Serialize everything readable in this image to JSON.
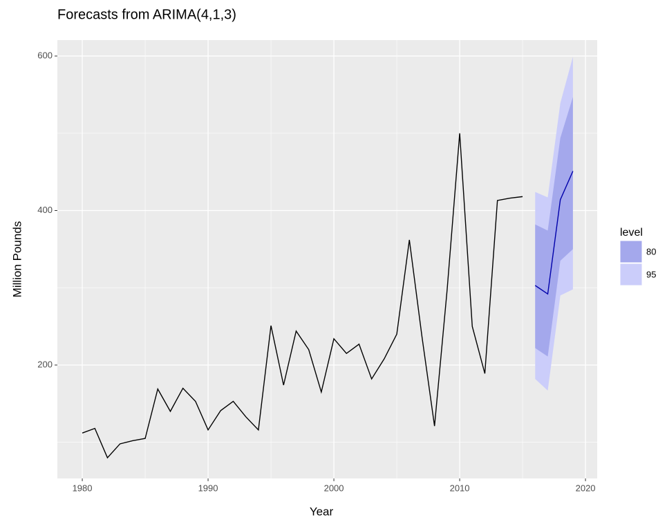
{
  "chart_data": {
    "type": "forecast",
    "title": "Forecasts from ARIMA(4,1,3)",
    "x_label": "Year",
    "y_label": "Million Pounds",
    "xlim": [
      1978.02,
      2020.93
    ],
    "ylim": [
      53.2,
      620.6
    ],
    "xticks": [
      1980,
      1990,
      2000,
      2010,
      2020
    ],
    "yticks": [
      200,
      400,
      600
    ],
    "x_minor_ticks": [
      1985,
      1995,
      2005,
      2015
    ],
    "y_minor_ticks": [
      100,
      300,
      500
    ],
    "grid": true,
    "legend_position": "right",
    "legend_title": "level",
    "history": {
      "color": "#000000",
      "x": [
        1980,
        1981,
        1982,
        1983,
        1984,
        1985,
        1986,
        1987,
        1988,
        1989,
        1990,
        1991,
        1992,
        1993,
        1994,
        1995,
        1996,
        1997,
        1998,
        1999,
        2000,
        2001,
        2002,
        2003,
        2004,
        2005,
        2006,
        2007,
        2008,
        2009,
        2010,
        2011,
        2012,
        2013,
        2014,
        2015
      ],
      "values": [
        112,
        118,
        80,
        98,
        102,
        105,
        169,
        140,
        170,
        153,
        116,
        141,
        153,
        133,
        116,
        251,
        174,
        244,
        220,
        165,
        234,
        215,
        227,
        182,
        208,
        240,
        362,
        237,
        121,
        297,
        500,
        250,
        189,
        413,
        416,
        418
      ]
    },
    "forecast": {
      "color": "#0000aa",
      "x": [
        2016,
        2017,
        2018,
        2019
      ],
      "values": [
        303,
        292,
        414,
        451
      ]
    },
    "bands": [
      {
        "name": "95",
        "color": "#cbcdfa",
        "lower": [
          182,
          167,
          290,
          298
        ],
        "upper": [
          424,
          417,
          539,
          599
        ]
      },
      {
        "name": "80",
        "color": "#a4a8ec",
        "lower": [
          222,
          211,
          335,
          350
        ],
        "upper": [
          382,
          374,
          494,
          547
        ]
      }
    ]
  }
}
